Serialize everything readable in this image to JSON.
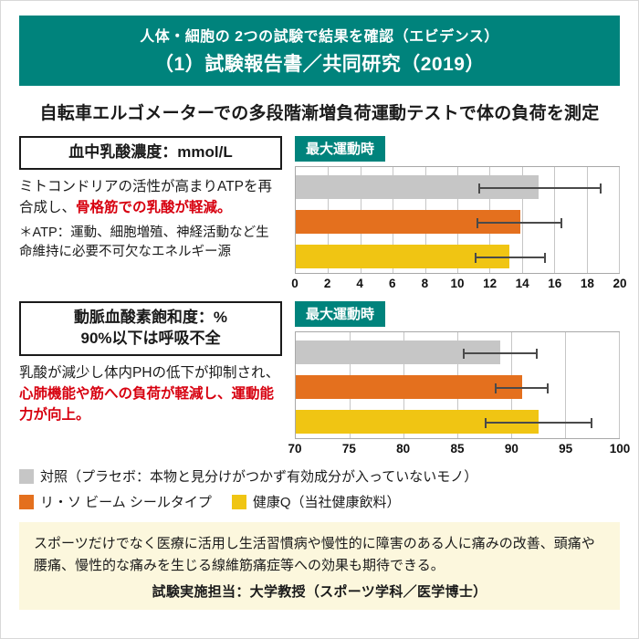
{
  "header": {
    "line1": "人体・細胞の 2つの試験で結果を確認（エビデンス）",
    "line2": "（1）試験報告書／共同研究（2019）"
  },
  "subtitle": "自転車エルゴメーターでの多段階漸増負荷運動テストで体の負荷を測定",
  "sections": [
    {
      "box_title_lines": [
        "血中乳酸濃度：mmol/L"
      ],
      "desc_black": "ミトコンドリアの活性が高まりATPを再合成し、",
      "desc_red": "骨格筋での乳酸が軽減。",
      "note": "＊ATP：運動、細胞増殖、神経活動など生命維持に必要不可欠なエネルギー源",
      "chart_label": "最大運動時"
    },
    {
      "box_title_lines": [
        "動脈血酸素飽和度：%",
        "90%以下は呼吸不全"
      ],
      "desc_black": "乳酸が減少し体内PHの低下が抑制され、",
      "desc_red": "心肺機能や筋への負荷が軽減し、運動能力が向上。",
      "chart_label": "最大運動時"
    }
  ],
  "legend": [
    {
      "label": "対照（プラセボ：本物と見分けがつかず有効成分が入っていないモノ）",
      "color": "#c6c6c6"
    },
    {
      "label": "リ・ソ ビーム シールタイプ",
      "color": "#e4701e"
    },
    {
      "label": "健康Q（当社健康飲料）",
      "color": "#f0c513"
    }
  ],
  "footer": {
    "paragraph": "スポーツだけでなく医療に活用し生活習慣病や慢性的に障害のある人に痛みの改善、頭痛や腰痛、慢性的な痛みを生じる線維筋痛症等への効果も期待できる。",
    "credit": "試験実施担当：大学教授（スポーツ学科／医学博士）"
  },
  "colors": {
    "teal": "#00837c",
    "red": "#d7000f",
    "footer_bg": "#fcf7dd",
    "bar_gray": "#c6c6c6",
    "bar_orange": "#e4701e",
    "bar_yellow": "#f0c513"
  },
  "chart_data": [
    {
      "type": "bar",
      "orientation": "horizontal",
      "title": "最大運動時",
      "xlim": [
        0,
        20
      ],
      "ticks": [
        0,
        2,
        4,
        6,
        8,
        10,
        12,
        14,
        16,
        18,
        20
      ],
      "grid": true,
      "series": [
        {
          "name": "対照（プラセボ）",
          "value": 15.0,
          "err_low": 11.3,
          "err_high": 18.9,
          "color": "#c6c6c6"
        },
        {
          "name": "リ・ソ ビーム シールタイプ",
          "value": 13.9,
          "err_low": 11.2,
          "err_high": 16.5,
          "color": "#e4701e"
        },
        {
          "name": "健康Q（当社健康飲料）",
          "value": 13.2,
          "err_low": 11.1,
          "err_high": 15.5,
          "color": "#f0c513"
        }
      ]
    },
    {
      "type": "bar",
      "orientation": "horizontal",
      "title": "最大運動時",
      "xlim": [
        70,
        100
      ],
      "ticks": [
        70,
        75,
        80,
        85,
        90,
        95,
        100
      ],
      "grid": true,
      "series": [
        {
          "name": "対照（プラセボ）",
          "value": 89.0,
          "err_low": 85.5,
          "err_high": 92.5,
          "color": "#c6c6c6"
        },
        {
          "name": "リ・ソ ビーム シールタイプ",
          "value": 91.0,
          "err_low": 88.5,
          "err_high": 93.5,
          "color": "#e4701e"
        },
        {
          "name": "健康Q（当社健康飲料）",
          "value": 92.5,
          "err_low": 87.5,
          "err_high": 97.5,
          "color": "#f0c513"
        }
      ]
    }
  ]
}
